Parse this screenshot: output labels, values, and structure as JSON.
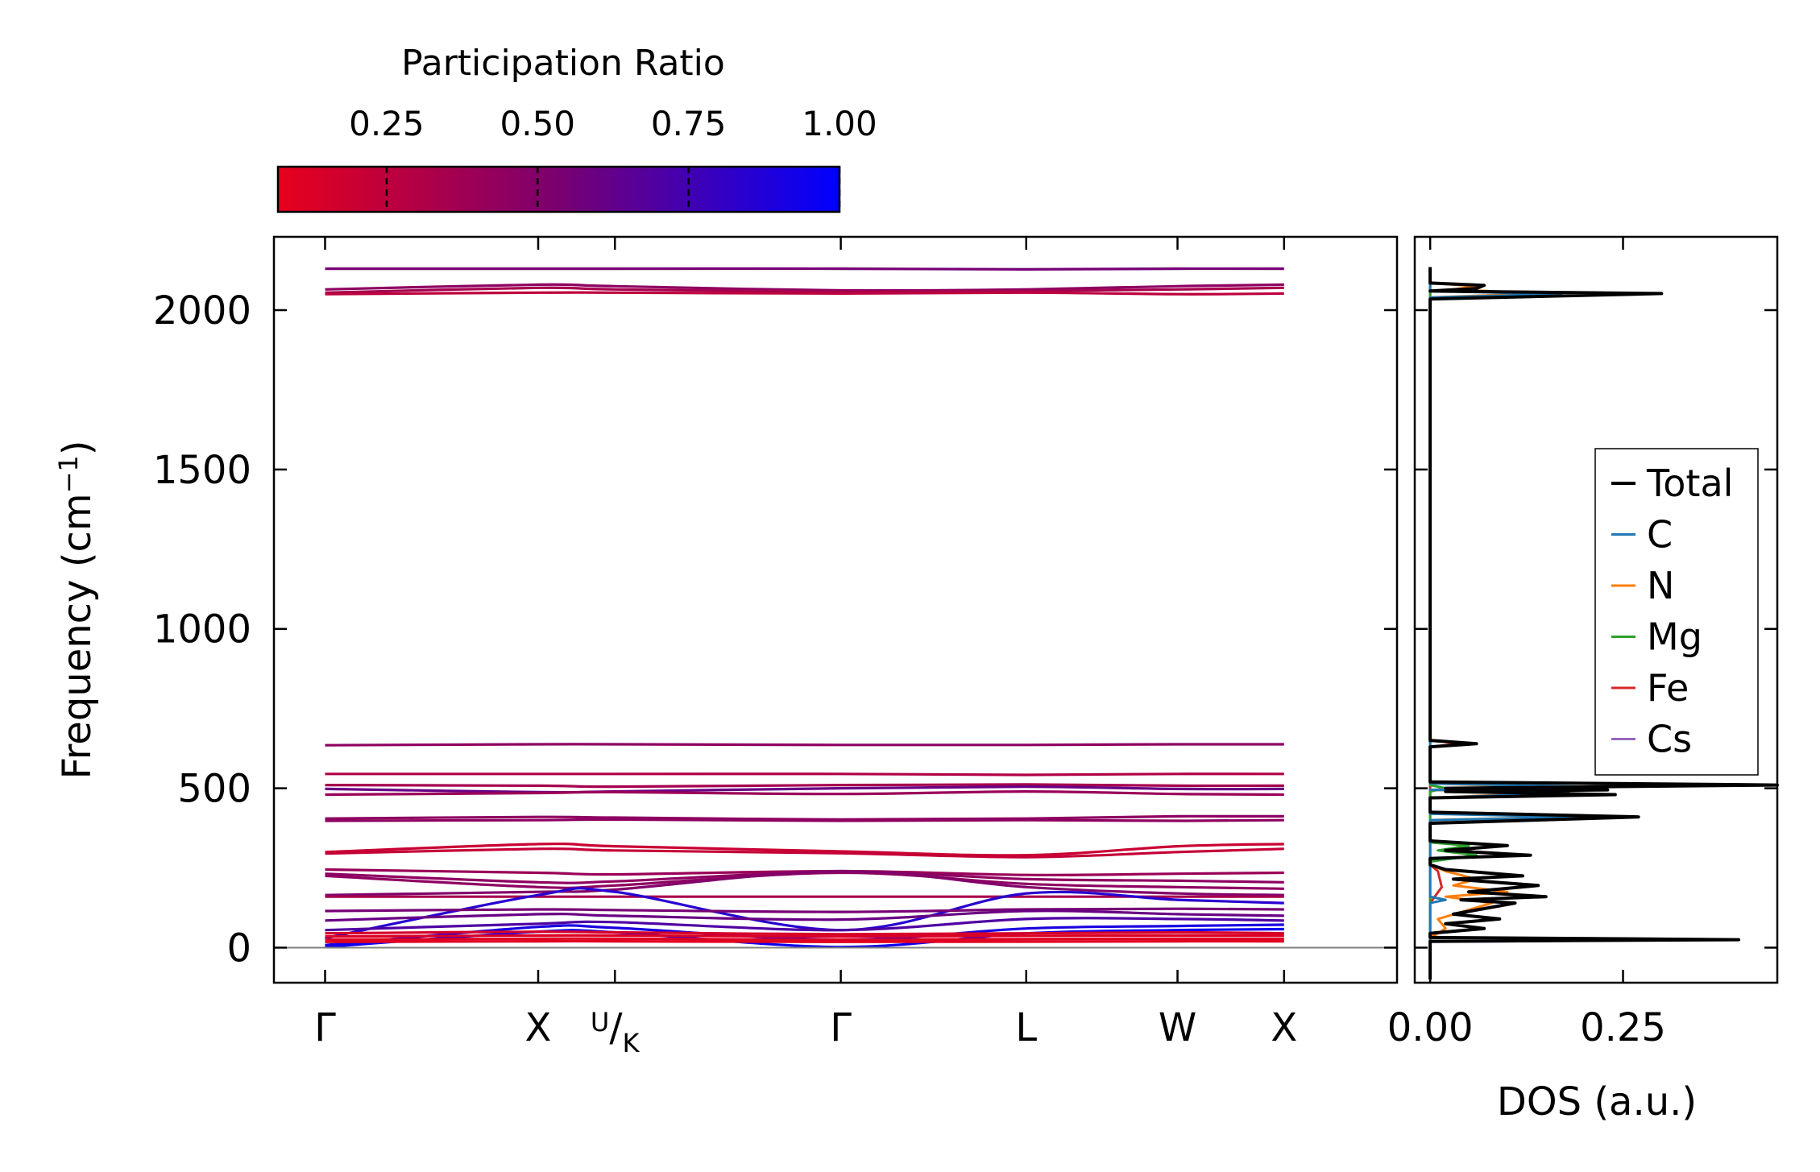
{
  "colorbar": {
    "title": "Participation Ratio",
    "ticks": [
      0.25,
      0.5,
      0.75,
      1.0
    ],
    "tick_labels": [
      "0.25",
      "0.50",
      "0.75",
      "1.00"
    ],
    "range": [
      0.07,
      1.0
    ],
    "colors": {
      "low": "#e8001c",
      "high": "#0000ff"
    }
  },
  "chart_data": [
    {
      "type": "line",
      "title": "",
      "ylabel": "Frequency (cm⁻¹)",
      "ylabel_main": "Frequency (cm",
      "ylabel_sup": "−1",
      "ylabel_close": ")",
      "xlabel": "",
      "ylim": [
        -110,
        2230
      ],
      "xlim": [
        -0.24,
        5.03
      ],
      "yticks": [
        0,
        500,
        1000,
        1500,
        2000
      ],
      "ytick_labels": [
        "0",
        "500",
        "1000",
        "1500",
        "2000"
      ],
      "high_symmetry_points": [
        {
          "label": "Γ",
          "x": 0.0
        },
        {
          "label": "X",
          "x": 1.0
        },
        {
          "label": "U",
          "label_sub": "K",
          "x": 1.36
        },
        {
          "label": "Γ",
          "x": 2.42
        },
        {
          "label": "L",
          "x": 3.29
        },
        {
          "label": "W",
          "x": 4.0
        },
        {
          "label": "X",
          "x": 4.5
        }
      ],
      "zero_line": 0,
      "bands": [
        {
          "pr": 0.55,
          "values": [
            2130,
            2130,
            2130,
            2130,
            2128,
            2130,
            2130
          ]
        },
        {
          "pr": 0.45,
          "values": [
            2065,
            2080,
            2075,
            2062,
            2065,
            2075,
            2080
          ]
        },
        {
          "pr": 0.35,
          "values": [
            2055,
            2070,
            2065,
            2058,
            2060,
            2065,
            2070
          ]
        },
        {
          "pr": 0.25,
          "values": [
            2050,
            2055,
            2055,
            2052,
            2055,
            2050,
            2052
          ]
        },
        {
          "pr": 0.45,
          "values": [
            635,
            638,
            638,
            636,
            636,
            638,
            638
          ]
        },
        {
          "pr": 0.3,
          "values": [
            545,
            545,
            545,
            545,
            542,
            545,
            545
          ]
        },
        {
          "pr": 0.35,
          "values": [
            510,
            508,
            505,
            510,
            512,
            508,
            508
          ]
        },
        {
          "pr": 0.6,
          "values": [
            498,
            488,
            490,
            500,
            505,
            498,
            498
          ]
        },
        {
          "pr": 0.4,
          "values": [
            480,
            485,
            488,
            482,
            490,
            482,
            480
          ]
        },
        {
          "pr": 0.45,
          "values": [
            405,
            410,
            408,
            402,
            405,
            412,
            412
          ]
        },
        {
          "pr": 0.45,
          "values": [
            398,
            400,
            402,
            398,
            400,
            398,
            400
          ]
        },
        {
          "pr": 0.2,
          "values": [
            300,
            325,
            318,
            302,
            290,
            318,
            325
          ]
        },
        {
          "pr": 0.22,
          "values": [
            295,
            310,
            305,
            296,
            284,
            300,
            310
          ]
        },
        {
          "pr": 0.4,
          "values": [
            245,
            235,
            230,
            240,
            228,
            232,
            235
          ]
        },
        {
          "pr": 0.45,
          "values": [
            232,
            205,
            208,
            238,
            215,
            210,
            205
          ]
        },
        {
          "pr": 0.45,
          "values": [
            225,
            190,
            195,
            235,
            200,
            190,
            185
          ]
        },
        {
          "pr": 0.5,
          "values": [
            165,
            175,
            182,
            240,
            190,
            170,
            165
          ]
        },
        {
          "pr": 0.35,
          "values": [
            160,
            160,
            160,
            160,
            160,
            160,
            160
          ]
        },
        {
          "pr": 0.85,
          "values": [
            30,
            165,
            175,
            55,
            170,
            150,
            140
          ]
        },
        {
          "pr": 0.55,
          "values": [
            115,
            120,
            118,
            112,
            120,
            122,
            120
          ]
        },
        {
          "pr": 0.6,
          "values": [
            85,
            105,
            100,
            88,
            115,
            105,
            100
          ]
        },
        {
          "pr": 0.7,
          "values": [
            55,
            75,
            80,
            55,
            90,
            90,
            85
          ]
        },
        {
          "pr": 0.9,
          "values": [
            8,
            65,
            62,
            25,
            60,
            68,
            72
          ]
        },
        {
          "pr": 0.95,
          "values": [
            2,
            50,
            48,
            2,
            45,
            55,
            58
          ]
        },
        {
          "pr": 0.15,
          "values": [
            45,
            50,
            48,
            42,
            45,
            48,
            45
          ]
        },
        {
          "pr": 0.12,
          "values": [
            35,
            38,
            38,
            35,
            37,
            38,
            38
          ]
        },
        {
          "pr": 0.1,
          "values": [
            25,
            28,
            28,
            25,
            27,
            28,
            28
          ]
        },
        {
          "pr": 0.1,
          "values": [
            18,
            20,
            20,
            18,
            19,
            20,
            20
          ]
        }
      ]
    },
    {
      "type": "line",
      "title": "",
      "xlabel": "DOS (a.u.)",
      "ylabel": "",
      "xlim": [
        -0.02,
        0.45
      ],
      "ylim": [
        -110,
        2230
      ],
      "xticks": [
        0.0,
        0.25
      ],
      "xtick_labels": [
        "0.00",
        "0.25"
      ],
      "legend": {
        "placement": "right",
        "entries": [
          "Total",
          "C",
          "N",
          "Mg",
          "Fe",
          "Cs"
        ]
      },
      "series": [
        {
          "name": "Total",
          "color": "#000000",
          "points": [
            [
              0,
              -100
            ],
            [
              0,
              20
            ],
            [
              0.4,
              25
            ],
            [
              0,
              32
            ],
            [
              0,
              45
            ],
            [
              0.07,
              60
            ],
            [
              0.02,
              75
            ],
            [
              0.09,
              90
            ],
            [
              0.03,
              105
            ],
            [
              0.11,
              140
            ],
            [
              0.04,
              150
            ],
            [
              0.15,
              160
            ],
            [
              0.05,
              175
            ],
            [
              0.14,
              195
            ],
            [
              0.03,
              215
            ],
            [
              0.12,
              225
            ],
            [
              0.02,
              245
            ],
            [
              0,
              260
            ],
            [
              0,
              280
            ],
            [
              0.13,
              290
            ],
            [
              0.02,
              305
            ],
            [
              0.1,
              320
            ],
            [
              0,
              335
            ],
            [
              0,
              390
            ],
            [
              0.27,
              410
            ],
            [
              0,
              425
            ],
            [
              0,
              470
            ],
            [
              0.24,
              480
            ],
            [
              0.02,
              490
            ],
            [
              0.23,
              495
            ],
            [
              0.02,
              500
            ],
            [
              0.45,
              510
            ],
            [
              0,
              520
            ],
            [
              0,
              630
            ],
            [
              0.06,
              640
            ],
            [
              0,
              650
            ],
            [
              0,
              2035
            ],
            [
              0.3,
              2052
            ],
            [
              0,
              2060
            ],
            [
              0.06,
              2068
            ],
            [
              0.07,
              2078
            ],
            [
              0,
              2085
            ],
            [
              0,
              2135
            ]
          ]
        },
        {
          "name": "C",
          "color": "#1f77b4",
          "points": [
            [
              0,
              -100
            ],
            [
              0,
              140
            ],
            [
              0.02,
              150
            ],
            [
              0,
              160
            ],
            [
              0,
              400
            ],
            [
              0.19,
              410
            ],
            [
              0,
              420
            ],
            [
              0,
              470
            ],
            [
              0.18,
              485
            ],
            [
              0,
              495
            ],
            [
              0.2,
              505
            ],
            [
              0,
              515
            ],
            [
              0,
              2040
            ],
            [
              0.17,
              2050
            ],
            [
              0,
              2060
            ],
            [
              0,
              2135
            ]
          ]
        },
        {
          "name": "N",
          "color": "#ff7f0e",
          "points": [
            [
              0,
              -100
            ],
            [
              0,
              30
            ],
            [
              0.02,
              60
            ],
            [
              0.01,
              90
            ],
            [
              0.08,
              140
            ],
            [
              0.02,
              160
            ],
            [
              0.1,
              175
            ],
            [
              0.03,
              195
            ],
            [
              0.06,
              215
            ],
            [
              0.02,
              240
            ],
            [
              0,
              260
            ],
            [
              0,
              400
            ],
            [
              0.17,
              410
            ],
            [
              0,
              425
            ],
            [
              0,
              470
            ],
            [
              0.15,
              485
            ],
            [
              0,
              495
            ],
            [
              0.13,
              505
            ],
            [
              0,
              515
            ],
            [
              0,
              2040
            ],
            [
              0.14,
              2052
            ],
            [
              0.03,
              2065
            ],
            [
              0.06,
              2075
            ],
            [
              0,
              2085
            ],
            [
              0,
              2135
            ]
          ]
        },
        {
          "name": "Mg",
          "color": "#2ca02c",
          "points": [
            [
              0,
              -100
            ],
            [
              0,
              270
            ],
            [
              0.06,
              290
            ],
            [
              0.01,
              305
            ],
            [
              0.05,
              320
            ],
            [
              0,
              330
            ],
            [
              0,
              490
            ],
            [
              0.02,
              500
            ],
            [
              0,
              510
            ],
            [
              0,
              2135
            ]
          ]
        },
        {
          "name": "Fe",
          "color": "#d62728",
          "points": [
            [
              0,
              -100
            ],
            [
              0,
              140
            ],
            [
              0.015,
              190
            ],
            [
              0.01,
              240
            ],
            [
              0,
              260
            ],
            [
              0,
              630
            ],
            [
              0.04,
              640
            ],
            [
              0,
              650
            ],
            [
              0,
              2135
            ]
          ]
        },
        {
          "name": "Cs",
          "color": "#9467bd",
          "points": [
            [
              0,
              -100
            ],
            [
              0,
              18
            ],
            [
              0.39,
              25
            ],
            [
              0,
              32
            ],
            [
              0,
              2135
            ]
          ]
        }
      ]
    }
  ]
}
